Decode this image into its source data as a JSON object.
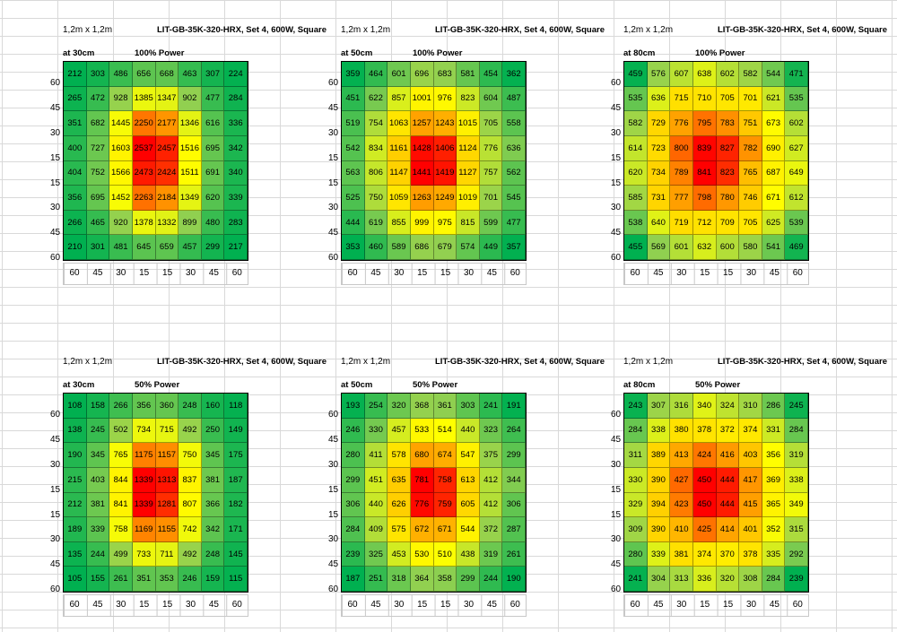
{
  "ylabels": [
    "60",
    "45",
    "30",
    "15",
    "15",
    "30",
    "45",
    "60"
  ],
  "chart_data": [
    {
      "type": "heatmap",
      "size_label": "1,2m x 1,2m",
      "title": "LIT-GB-35K-320-HRX, Set 4, 600W, Square",
      "distance_label": "at 30cm",
      "power_label": "100% Power",
      "x": [
        "60",
        "45",
        "30",
        "15",
        "15",
        "30",
        "45",
        "60"
      ],
      "values": [
        [
          212,
          303,
          486,
          656,
          668,
          463,
          307,
          224
        ],
        [
          265,
          472,
          928,
          1385,
          1347,
          902,
          477,
          284
        ],
        [
          351,
          682,
          1445,
          2250,
          2177,
          1346,
          616,
          336
        ],
        [
          400,
          727,
          1603,
          2537,
          2457,
          1516,
          695,
          342
        ],
        [
          404,
          752,
          1566,
          2473,
          2424,
          1511,
          691,
          340
        ],
        [
          356,
          695,
          1452,
          2263,
          2184,
          1349,
          620,
          339
        ],
        [
          266,
          465,
          920,
          1378,
          1332,
          899,
          480,
          283
        ],
        [
          210,
          301,
          481,
          645,
          659,
          457,
          299,
          217
        ]
      ]
    },
    {
      "type": "heatmap",
      "size_label": "1,2m x 1,2m",
      "title": "LIT-GB-35K-320-HRX, Set 4, 600W, Square",
      "distance_label": "at 50cm",
      "power_label": "100% Power",
      "x": [
        "60",
        "45",
        "30",
        "15",
        "15",
        "30",
        "45",
        "60"
      ],
      "values": [
        [
          359,
          464,
          601,
          696,
          683,
          581,
          454,
          362
        ],
        [
          451,
          622,
          857,
          1001,
          976,
          823,
          604,
          487
        ],
        [
          519,
          754,
          1063,
          1257,
          1243,
          1015,
          705,
          558
        ],
        [
          542,
          834,
          1161,
          1428,
          1406,
          1124,
          776,
          636
        ],
        [
          563,
          806,
          1147,
          1441,
          1419,
          1127,
          757,
          562
        ],
        [
          525,
          750,
          1059,
          1263,
          1249,
          1019,
          701,
          545
        ],
        [
          444,
          619,
          855,
          999,
          975,
          815,
          599,
          477
        ],
        [
          353,
          460,
          589,
          686,
          679,
          574,
          449,
          357
        ]
      ]
    },
    {
      "type": "heatmap",
      "size_label": "1,2m x 1,2m",
      "title": "LIT-GB-35K-320-HRX, Set 4, 600W, Square",
      "distance_label": "at 80cm",
      "power_label": "100% Power",
      "x": [
        "60",
        "45",
        "30",
        "15",
        "15",
        "30",
        "45",
        "60"
      ],
      "values": [
        [
          459,
          576,
          607,
          638,
          602,
          582,
          544,
          471
        ],
        [
          535,
          636,
          715,
          710,
          705,
          701,
          621,
          535
        ],
        [
          582,
          729,
          776,
          795,
          783,
          751,
          673,
          602
        ],
        [
          614,
          723,
          800,
          839,
          827,
          782,
          690,
          627
        ],
        [
          620,
          734,
          789,
          841,
          823,
          765,
          687,
          649
        ],
        [
          585,
          731,
          777,
          798,
          780,
          746,
          671,
          612
        ],
        [
          538,
          640,
          719,
          712,
          709,
          705,
          625,
          539
        ],
        [
          455,
          569,
          601,
          632,
          600,
          580,
          541,
          469
        ]
      ]
    },
    {
      "type": "heatmap",
      "size_label": "1,2m x 1,2m",
      "title": "LIT-GB-35K-320-HRX, Set 4, 600W, Square",
      "distance_label": "at 30cm",
      "power_label": "50% Power",
      "x": [
        "60",
        "45",
        "30",
        "15",
        "15",
        "30",
        "45",
        "60"
      ],
      "values": [
        [
          108,
          158,
          266,
          356,
          360,
          248,
          160,
          118
        ],
        [
          138,
          245,
          502,
          734,
          715,
          492,
          250,
          149
        ],
        [
          190,
          345,
          765,
          1175,
          1157,
          750,
          345,
          175
        ],
        [
          215,
          403,
          844,
          1339,
          1313,
          837,
          381,
          187
        ],
        [
          212,
          381,
          841,
          1339,
          1281,
          807,
          366,
          182
        ],
        [
          189,
          339,
          758,
          1169,
          1155,
          742,
          342,
          171
        ],
        [
          135,
          244,
          499,
          733,
          711,
          492,
          248,
          145
        ],
        [
          105,
          155,
          261,
          351,
          353,
          246,
          159,
          115
        ]
      ]
    },
    {
      "type": "heatmap",
      "size_label": "1,2m x 1,2m",
      "title": "LIT-GB-35K-320-HRX, Set 4, 600W, Square",
      "distance_label": "at 50cm",
      "power_label": "50% Power",
      "x": [
        "60",
        "45",
        "30",
        "15",
        "15",
        "30",
        "45",
        "60"
      ],
      "values": [
        [
          193,
          254,
          320,
          368,
          361,
          303,
          241,
          191
        ],
        [
          246,
          330,
          457,
          533,
          514,
          440,
          323,
          264
        ],
        [
          280,
          411,
          578,
          680,
          674,
          547,
          375,
          299
        ],
        [
          299,
          451,
          635,
          781,
          758,
          613,
          412,
          344
        ],
        [
          306,
          440,
          626,
          776,
          759,
          605,
          412,
          306
        ],
        [
          284,
          409,
          575,
          672,
          671,
          544,
          372,
          287
        ],
        [
          239,
          325,
          453,
          530,
          510,
          438,
          319,
          261
        ],
        [
          187,
          251,
          318,
          364,
          358,
          299,
          244,
          190
        ]
      ]
    },
    {
      "type": "heatmap",
      "size_label": "1,2m x 1,2m",
      "title": "LIT-GB-35K-320-HRX, Set 4, 600W, Square",
      "distance_label": "at 80cm",
      "power_label": "50% Power",
      "x": [
        "60",
        "45",
        "30",
        "15",
        "15",
        "30",
        "45",
        "60"
      ],
      "values": [
        [
          243,
          307,
          316,
          340,
          324,
          310,
          286,
          245
        ],
        [
          284,
          338,
          380,
          378,
          372,
          374,
          331,
          284
        ],
        [
          311,
          389,
          413,
          424,
          416,
          403,
          356,
          319
        ],
        [
          330,
          390,
          427,
          450,
          444,
          417,
          369,
          338
        ],
        [
          329,
          394,
          423,
          450,
          444,
          415,
          365,
          349
        ],
        [
          309,
          390,
          410,
          425,
          414,
          401,
          352,
          315
        ],
        [
          280,
          339,
          381,
          374,
          370,
          378,
          335,
          292
        ],
        [
          241,
          304,
          313,
          336,
          320,
          308,
          284,
          239
        ]
      ]
    }
  ]
}
